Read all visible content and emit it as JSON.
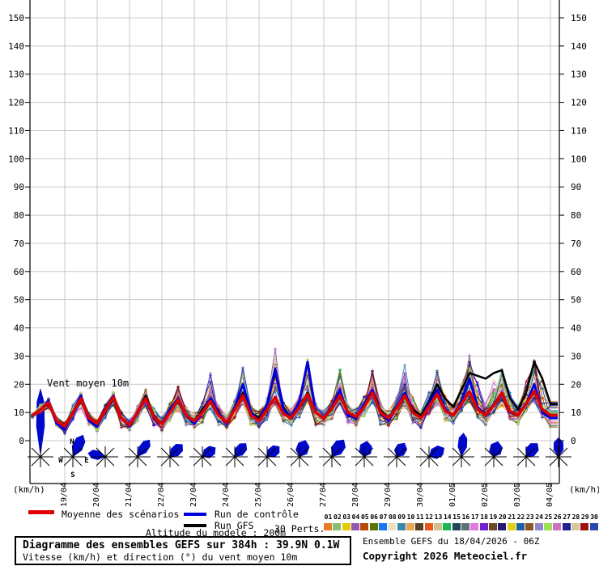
{
  "chart_data": {
    "type": "line",
    "title_annotation": "Vent moyen 10m",
    "unit_label": "(km/h)",
    "run_start": "18/04 06Z",
    "x_step_hours": 6,
    "x_total_hours": 384,
    "date_ticks": [
      "19/04",
      "20/04",
      "21/04",
      "22/04",
      "23/04",
      "24/04",
      "25/04",
      "26/04",
      "27/04",
      "28/04",
      "29/04",
      "30/04",
      "01/05",
      "02/05",
      "03/05",
      "04/05"
    ],
    "y_ticks": [
      0,
      10,
      20,
      30,
      40,
      50,
      60,
      70,
      80,
      90,
      100,
      110,
      120,
      130,
      140,
      150
    ],
    "ylim": [
      0,
      157
    ],
    "grid": true,
    "series": [
      {
        "name": "Moyenne des scénarios",
        "color": "#e10000",
        "width": 3.5,
        "values": [
          9,
          11,
          13.5,
          7,
          5,
          10,
          15,
          8,
          6,
          10.5,
          15.5,
          8,
          5.5,
          10,
          15,
          8.5,
          6,
          10,
          14.5,
          9,
          7,
          10,
          14,
          9,
          6.5,
          11,
          16,
          9,
          7,
          11,
          15.5,
          9.5,
          8,
          12,
          16.5,
          10,
          8,
          11.5,
          16,
          10,
          8.5,
          12,
          17,
          10,
          8,
          11.5,
          16,
          10,
          8,
          12,
          16.5,
          10.5,
          9,
          13,
          17.5,
          11,
          9,
          12.5,
          17,
          10.5,
          9,
          13,
          17.5,
          11,
          9
        ]
      },
      {
        "name": "Run de contrôle",
        "color": "#0000dd",
        "width": 3,
        "values": [
          9,
          11,
          14,
          6,
          4,
          10,
          16,
          7,
          5,
          11,
          16,
          8,
          5,
          10,
          15,
          8,
          6,
          11,
          15,
          9,
          6,
          10,
          15,
          10,
          6,
          12,
          20,
          10,
          7,
          13,
          25.5,
          11,
          8,
          14,
          28,
          10,
          8,
          12,
          18,
          9,
          8,
          13,
          18,
          10,
          7,
          12,
          17,
          10,
          8,
          13,
          18,
          11,
          9,
          14,
          22,
          12,
          9,
          13,
          17,
          10,
          9,
          13,
          20,
          10,
          8
        ]
      },
      {
        "name": "Run GFS",
        "color": "#000000",
        "width": 2.5,
        "values": [
          9,
          11,
          13,
          7,
          5,
          10,
          15,
          8,
          6,
          10,
          15,
          8,
          5,
          10,
          16,
          9,
          6,
          10,
          14,
          9,
          7,
          11,
          15,
          9,
          6,
          11,
          17,
          10,
          8,
          13,
          24,
          12,
          8,
          12,
          17,
          10,
          8,
          11,
          16,
          10,
          8,
          12,
          18,
          11,
          8,
          12,
          17,
          11,
          9,
          14,
          20,
          15,
          12,
          18,
          24,
          23,
          22,
          24,
          25,
          15,
          11,
          17,
          28,
          22,
          13
        ]
      }
    ],
    "members": {
      "count": 30,
      "labels": [
        "01",
        "02",
        "03",
        "04",
        "05",
        "06",
        "07",
        "08",
        "09",
        "10",
        "11",
        "12",
        "13",
        "14",
        "15",
        "16",
        "17",
        "18",
        "19",
        "20",
        "21",
        "22",
        "23",
        "24",
        "25",
        "26",
        "27",
        "28",
        "29",
        "30"
      ],
      "colors": [
        "#e87c28",
        "#88c070",
        "#e8c800",
        "#9058b0",
        "#b84808",
        "#587800",
        "#1878f0",
        "#e8e0c0",
        "#3888a8",
        "#e8a858",
        "#584028",
        "#e85818",
        "#d0c090",
        "#18b850",
        "#204858",
        "#607078",
        "#e078e0",
        "#7020d0",
        "#6b4a28",
        "#281878",
        "#e0d018",
        "#2060a0",
        "#8a5820",
        "#9088c8",
        "#a0e058",
        "#d070c0",
        "#202090",
        "#d8c8a0",
        "#a01010",
        "#2848b0"
      ],
      "envelope_min": [
        8,
        9,
        11,
        4,
        2,
        6,
        11,
        4,
        3,
        7,
        12,
        4,
        3,
        6,
        11,
        4,
        3,
        6,
        10,
        5,
        3,
        6,
        10,
        5,
        3,
        7,
        11,
        5,
        3,
        7,
        11,
        5,
        4,
        8,
        12,
        5,
        4,
        7,
        11,
        5,
        4,
        8,
        12,
        5,
        4,
        7,
        11,
        5,
        4,
        8,
        12,
        6,
        5,
        9,
        13,
        6,
        5,
        8,
        12,
        6,
        5,
        9,
        13,
        6,
        4
      ],
      "envelope_max": [
        10,
        13,
        16,
        9,
        7,
        13,
        18,
        10,
        8,
        13,
        18,
        11,
        8,
        13,
        19,
        12,
        9,
        14,
        20,
        13,
        10,
        15,
        25,
        14,
        10,
        16,
        28,
        15,
        11,
        18,
        34,
        16,
        12,
        18,
        30,
        15,
        11,
        16,
        28,
        14,
        12,
        17,
        26,
        15,
        11,
        17,
        30,
        16,
        12,
        18,
        28,
        17,
        14,
        22,
        37,
        22,
        16,
        22,
        30,
        18,
        14,
        22,
        36,
        24,
        18
      ]
    },
    "wind_roses": {
      "color": "#0008cc",
      "compass_labels": {
        "n": "N",
        "e": "E",
        "s": "S",
        "w": "W"
      },
      "items": [
        {
          "t_hours": 6,
          "dir_deg": 0,
          "len": 85,
          "spread": 8
        },
        {
          "t_hours": 30,
          "dir_deg": 25,
          "len": 30,
          "spread": 30
        },
        {
          "t_hours": 54,
          "dir_deg": 282,
          "len": 22,
          "spread": 35
        },
        {
          "t_hours": 78,
          "dir_deg": 35,
          "len": 26,
          "spread": 30
        },
        {
          "t_hours": 102,
          "dir_deg": 45,
          "len": 22,
          "spread": 40
        },
        {
          "t_hours": 126,
          "dir_deg": 55,
          "len": 20,
          "spread": 45
        },
        {
          "t_hours": 150,
          "dir_deg": 40,
          "len": 22,
          "spread": 40
        },
        {
          "t_hours": 174,
          "dir_deg": 50,
          "len": 20,
          "spread": 45
        },
        {
          "t_hours": 198,
          "dir_deg": 20,
          "len": 22,
          "spread": 50
        },
        {
          "t_hours": 222,
          "dir_deg": 35,
          "len": 26,
          "spread": 40
        },
        {
          "t_hours": 246,
          "dir_deg": 10,
          "len": 20,
          "spread": 55
        },
        {
          "t_hours": 270,
          "dir_deg": 30,
          "len": 20,
          "spread": 50
        },
        {
          "t_hours": 294,
          "dir_deg": 60,
          "len": 22,
          "spread": 45
        },
        {
          "t_hours": 318,
          "dir_deg": 5,
          "len": 30,
          "spread": 25
        },
        {
          "t_hours": 342,
          "dir_deg": 15,
          "len": 20,
          "spread": 55
        },
        {
          "t_hours": 366,
          "dir_deg": 40,
          "len": 22,
          "spread": 45
        },
        {
          "t_hours": 390,
          "dir_deg": 0,
          "len": 24,
          "spread": 35
        }
      ]
    }
  },
  "legend": {
    "items": [
      {
        "label": "Moyenne des scénarios",
        "color": "#e10000"
      },
      {
        "label": "Run de contrôle",
        "color": "#0000dd"
      },
      {
        "label": "Run GFS",
        "color": "#000000"
      }
    ],
    "perts_label": "30 Perts."
  },
  "footer": {
    "altitude_note": "Altitude du modele : 200m",
    "box_title": "Diagramme des ensembles GEFS sur 384h : 39.9N 0.1W",
    "box_subtitle": "Vitesse (km/h) et direction (°) du vent moyen 10m",
    "run_info": "Ensemble GEFS du 18/04/2026 - 06Z",
    "copyright": "Copyright 2026 Meteociel.fr"
  }
}
